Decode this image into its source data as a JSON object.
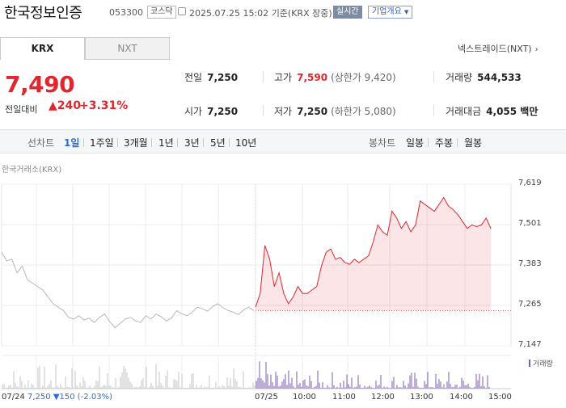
{
  "header": {
    "name": "한국정보인증",
    "code": "053300",
    "market": "코스닥",
    "datetime": "2025.07.25 15:02",
    "basis": "기준(KRX 장중)",
    "realtime": "실시간",
    "corp_info": "기업개요"
  },
  "tabs": {
    "krx": "KRX",
    "nxt": "NXT",
    "nxt_link": "넥스트레이드(NXT)"
  },
  "price": {
    "current": "7,490",
    "vs_label": "전일대비",
    "change": "240",
    "percent": "+3.31%"
  },
  "stats": {
    "prev_label": "전일",
    "prev": "7,250",
    "high_label": "고가",
    "high": "7,590",
    "upper_label": "(상한가 9,420)",
    "volume_label": "거래량",
    "volume": "544,533",
    "open_label": "시가",
    "open": "7,250",
    "low_label": "저가",
    "low": "7,250",
    "lower_label": "(하한가 5,080)",
    "amount_label": "거래대금",
    "amount": "4,055 백만"
  },
  "toolbar": {
    "line_label": "선차트",
    "periods": [
      "1일",
      "1주일",
      "3개월",
      "1년",
      "3년",
      "5년",
      "10년"
    ],
    "candle_label": "봉차트",
    "candles": [
      "일봉",
      "주봉",
      "월봉"
    ]
  },
  "chart": {
    "source": "한국거래소(KRX)",
    "volume_label": "거래량",
    "prev_day": "07/24",
    "prev_close": "7,250",
    "prev_change": "▼150 (-2.03%)"
  },
  "colors": {
    "up": "#e0262e",
    "down": "#2d6bd6",
    "prev_line": "#b8b8b8",
    "volume": "#7a5ea8"
  },
  "chart_data": {
    "type": "line",
    "y_ticks": [
      "7,619",
      "7,501",
      "7,383",
      "7,265",
      "7,147"
    ],
    "ylim": [
      7147,
      7619
    ],
    "x_ticks": [
      "07/25",
      "10:00",
      "11:00",
      "12:00",
      "13:00",
      "14:00",
      "15:00"
    ],
    "baseline": 7250,
    "series": [
      {
        "values": [
          7420,
          7395,
          7400,
          7360,
          7380,
          7340,
          7330,
          7320,
          7310,
          7290,
          7270,
          7260,
          7250,
          7230,
          7225,
          7235,
          7222,
          7228,
          7215,
          7230,
          7240,
          7218,
          7200,
          7212,
          7225,
          7230,
          7220,
          7215,
          7235,
          7225,
          7240,
          7232,
          7220,
          7228,
          7250,
          7240,
          7235,
          7245,
          7260,
          7255,
          7248,
          7262,
          7270,
          7258,
          7250,
          7245,
          7238,
          7252,
          7260,
          7250
        ]
      },
      {
        "values": [
          7260,
          7300,
          7440,
          7400,
          7320,
          7360,
          7300,
          7270,
          7290,
          7320,
          7300,
          7300,
          7310,
          7320,
          7380,
          7420,
          7430,
          7400,
          7405,
          7390,
          7385,
          7400,
          7390,
          7400,
          7410,
          7450,
          7500,
          7480,
          7470,
          7540,
          7520,
          7490,
          7510,
          7480,
          7500,
          7570,
          7560,
          7550,
          7540,
          7560,
          7580,
          7555,
          7545,
          7530,
          7510,
          7490,
          7500,
          7495,
          7500,
          7520,
          7490
        ]
      }
    ]
  }
}
